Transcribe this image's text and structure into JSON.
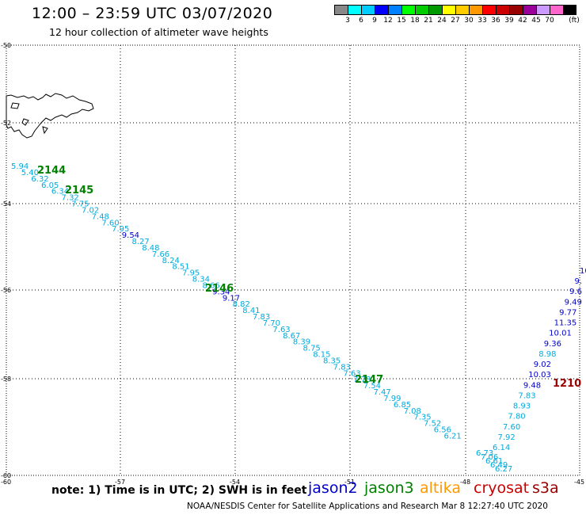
{
  "header": {
    "title": "12:00 – 23:59 UTC 03/07/2020",
    "subtitle": "12 hour collection of altimeter wave heights"
  },
  "legend": {
    "colors": [
      "#888888",
      "#00ffff",
      "#00ccff",
      "#0000ff",
      "#007fff",
      "#00ff00",
      "#00cc00",
      "#009900",
      "#ffff00",
      "#ffcc00",
      "#ff9900",
      "#ff0000",
      "#cc0000",
      "#990000",
      "#990099",
      "#cc99ff",
      "#ff66cc",
      "#000000"
    ],
    "labels": [
      "3",
      "6",
      "9",
      "12",
      "15",
      "18",
      "21",
      "24",
      "27",
      "30",
      "33",
      "36",
      "39",
      "42",
      "45",
      "70"
    ],
    "unit": "(ft)"
  },
  "axes": {
    "lat_labels": [
      "-50",
      "-52",
      "-54",
      "-56",
      "-58",
      "-60"
    ],
    "lon_labels": [
      "-60",
      "-57",
      "-54",
      "-51",
      "-48",
      "-45"
    ]
  },
  "pass_labels": [
    {
      "text": "2144",
      "color": "#008000"
    },
    {
      "text": "2145",
      "color": "#008000"
    },
    {
      "text": "2146",
      "color": "#008000"
    },
    {
      "text": "2147",
      "color": "#008000"
    },
    {
      "text": "1210",
      "color": "#990000"
    }
  ],
  "tracks": {
    "jason3": {
      "values": [
        "5.94",
        "5.40",
        "6.32",
        "6.05",
        "6.34",
        "7.32",
        "7.75",
        "7.02",
        "7.48",
        "7.60",
        "7.95",
        "9.54",
        "8.27",
        "8.48",
        "7.66",
        "8.24",
        "8.51",
        "7.95",
        "8.34",
        "8.66",
        "9.34",
        "9.17",
        "8.82",
        "8.41",
        "7.83",
        "7.70",
        "7.63",
        "8.67",
        "8.39",
        "8.75",
        "8.15",
        "8.35",
        "7.83",
        "7.63",
        "7.78",
        "7.54",
        "7.47",
        "7.99",
        "6.85",
        "7.08",
        "7.35",
        "7.52",
        "6.56",
        "6.21",
        "6.73",
        "7.06",
        "6.61",
        "6.49",
        "6.27"
      ]
    },
    "cryosat": {
      "values": [
        "6.14",
        "7.92",
        "7.60",
        "7.80",
        "8.93",
        "7.83",
        "9.48",
        "10.03",
        "9.02",
        "8.98",
        "9.36",
        "10.01",
        "11.35",
        "9.77",
        "9.49",
        "9.6",
        "9.",
        "10"
      ]
    }
  },
  "note": "note: 1) Time is in UTC; 2) SWH is in feet",
  "satellites": [
    {
      "name": "jason2",
      "color": "#0000cc"
    },
    {
      "name": "jason3",
      "color": "#008000"
    },
    {
      "name": "altika",
      "color": "#ff9900"
    },
    {
      "name": "cryosat",
      "color": "#cc0000"
    },
    {
      "name": "s3a",
      "color": "#990000"
    }
  ],
  "footer": "NOAA/NESDIS Center for Satellite Applications and Research    Mar  8 12:27:40 UTC 2020"
}
